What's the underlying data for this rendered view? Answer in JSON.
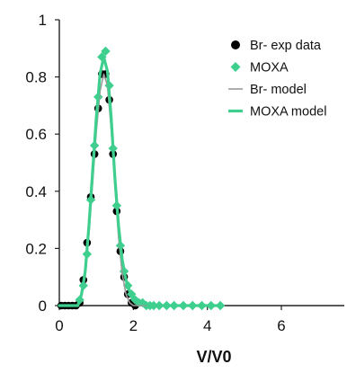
{
  "chart_data": {
    "type": "scatter",
    "title": "",
    "xlabel": "V/V0",
    "ylabel": "",
    "xlim": [
      0,
      7.7
    ],
    "ylim": [
      0,
      1
    ],
    "xticks": [
      "0",
      "2",
      "4",
      "6"
    ],
    "yticks": [
      "0",
      "0.2",
      "0.4",
      "0.6",
      "0.8",
      "1"
    ],
    "grid": false,
    "legend_position": "top-right",
    "colors": {
      "br": "#000000",
      "moxa": "#3ecf8e",
      "br_model": "#9a9a9a",
      "moxa_model": "#3ecf8e"
    },
    "series": [
      {
        "name": "Br- exp data",
        "kind": "points",
        "marker": "circle",
        "x": [
          0.05,
          0.15,
          0.25,
          0.35,
          0.45,
          0.55,
          0.65,
          0.75,
          0.85,
          0.95,
          1.05,
          1.15,
          1.25,
          1.35,
          1.45,
          1.55,
          1.65,
          1.75,
          1.85,
          1.95,
          2.05
        ],
        "y": [
          0.0,
          0.0,
          0.0,
          0.0,
          0.0,
          0.01,
          0.09,
          0.22,
          0.38,
          0.53,
          0.69,
          0.81,
          0.81,
          0.72,
          0.53,
          0.33,
          0.19,
          0.1,
          0.04,
          0.01,
          0.0
        ]
      },
      {
        "name": "MOXA",
        "kind": "points",
        "marker": "diamond",
        "x": [
          0.55,
          0.65,
          0.75,
          0.85,
          0.95,
          1.05,
          1.15,
          1.25,
          1.35,
          1.45,
          1.55,
          1.65,
          1.75,
          1.85,
          1.95,
          2.05,
          2.15,
          2.25,
          2.35,
          2.45,
          2.55,
          2.7,
          2.9,
          3.1,
          3.35,
          3.6,
          3.85,
          4.1,
          4.35
        ],
        "y": [
          0.02,
          0.07,
          0.18,
          0.37,
          0.56,
          0.73,
          0.87,
          0.89,
          0.77,
          0.55,
          0.35,
          0.21,
          0.12,
          0.07,
          0.04,
          0.02,
          0.01,
          0.01,
          0.0,
          0.0,
          0.0,
          0.0,
          0.0,
          0.0,
          0.0,
          0.0,
          0.0,
          0.0,
          0.0
        ]
      },
      {
        "name": "Br- model",
        "kind": "line",
        "x": [
          0.0,
          0.5,
          0.6,
          0.7,
          0.8,
          0.9,
          1.0,
          1.1,
          1.2,
          1.3,
          1.4,
          1.5,
          1.6,
          1.7,
          1.8,
          1.9,
          2.0,
          2.2,
          2.5,
          3.0
        ],
        "y": [
          0.0,
          0.0,
          0.03,
          0.1,
          0.25,
          0.43,
          0.61,
          0.75,
          0.81,
          0.77,
          0.62,
          0.42,
          0.24,
          0.11,
          0.04,
          0.01,
          0.0,
          0.0,
          0.0,
          0.0
        ]
      },
      {
        "name": "MOXA model",
        "kind": "line",
        "x": [
          0.0,
          0.5,
          0.6,
          0.7,
          0.8,
          0.9,
          1.0,
          1.1,
          1.2,
          1.3,
          1.4,
          1.5,
          1.6,
          1.7,
          1.8,
          1.9,
          2.0,
          2.2,
          2.5,
          3.0,
          4.3
        ],
        "y": [
          0.0,
          0.0,
          0.04,
          0.12,
          0.28,
          0.47,
          0.66,
          0.81,
          0.87,
          0.82,
          0.66,
          0.45,
          0.28,
          0.16,
          0.09,
          0.05,
          0.03,
          0.01,
          0.0,
          0.0,
          0.0
        ]
      }
    ]
  }
}
